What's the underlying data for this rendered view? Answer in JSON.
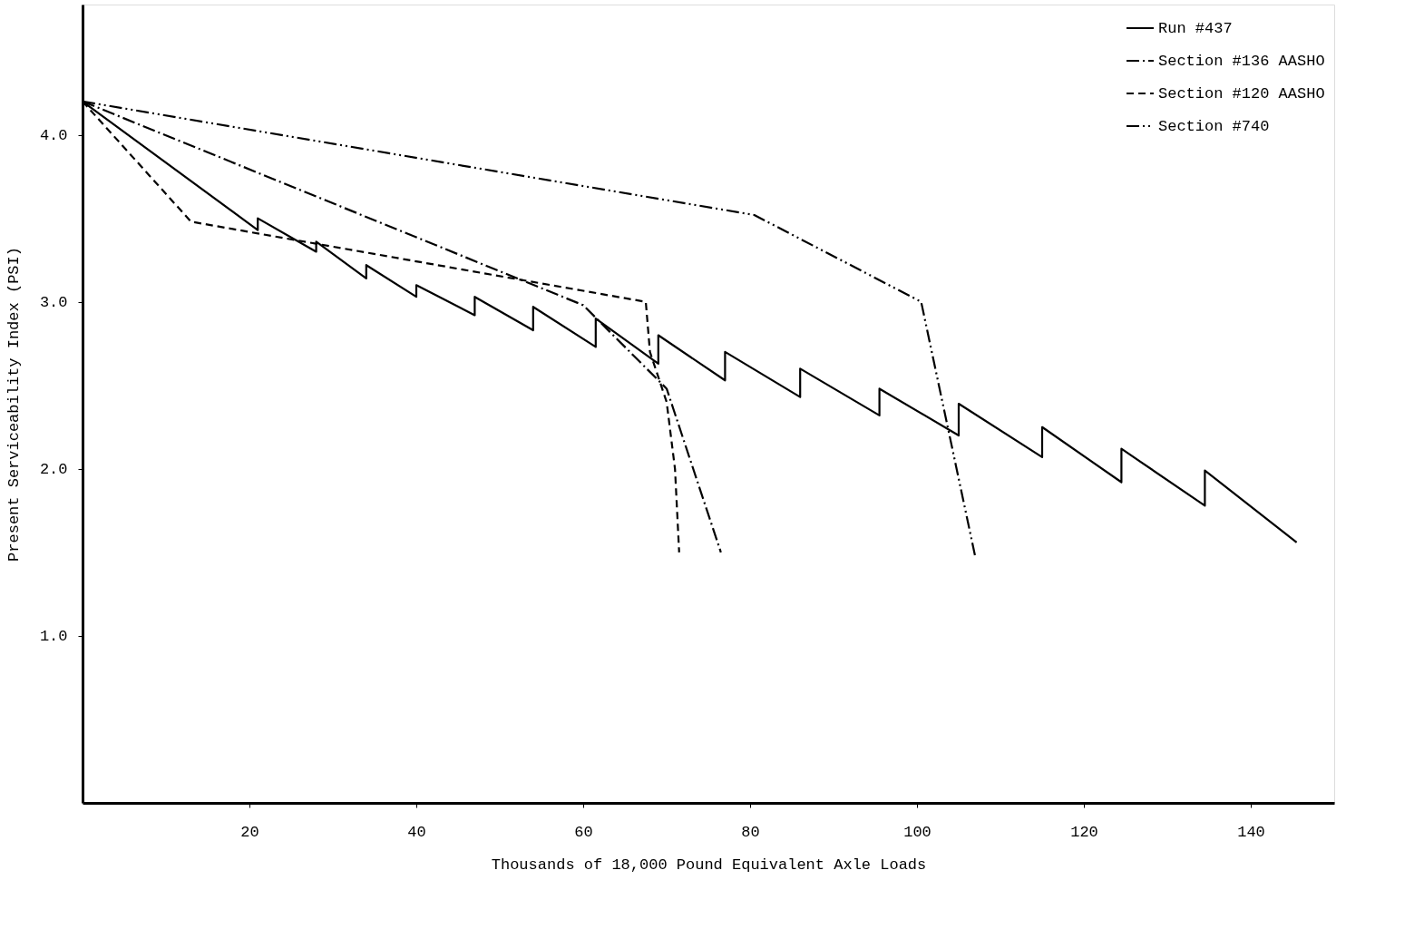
{
  "chart_data": {
    "type": "line",
    "xlabel": "Thousands of 18,000 Pound Equivalent Axle Loads",
    "ylabel": "Present Serviceability Index (PSI)",
    "xlim": [
      0,
      150
    ],
    "ylim": [
      0,
      4.78
    ],
    "xticks": [
      20,
      40,
      60,
      80,
      100,
      120,
      140
    ],
    "yticks": [
      {
        "value": 1,
        "label": "1.0"
      },
      {
        "value": 2,
        "label": "2.0"
      },
      {
        "value": 3,
        "label": "3.0"
      },
      {
        "value": 4,
        "label": "4.0"
      }
    ],
    "grid": false,
    "legend": "top right",
    "series": [
      {
        "name": "Run #437",
        "color": "#000000",
        "line_style": "solid",
        "x": [
          0,
          21,
          21,
          28,
          28,
          34,
          34,
          40,
          40,
          47,
          47,
          54,
          54,
          61.5,
          61.5,
          69,
          69,
          77,
          77,
          86,
          86,
          95.5,
          95.5,
          105,
          105,
          115,
          115,
          124.5,
          124.5,
          134.5,
          134.5,
          145.5
        ],
        "values": [
          4.2,
          3.43,
          3.5,
          3.3,
          3.36,
          3.14,
          3.22,
          3.03,
          3.1,
          2.92,
          3.03,
          2.83,
          2.97,
          2.73,
          2.9,
          2.63,
          2.8,
          2.53,
          2.7,
          2.43,
          2.6,
          2.32,
          2.48,
          2.2,
          2.39,
          2.07,
          2.25,
          1.92,
          2.12,
          1.78,
          1.99,
          1.56
        ]
      },
      {
        "name": "Section #136 AASHO",
        "color": "#000000",
        "line_style": "dashdot",
        "x": [
          0,
          60,
          70,
          76.5
        ],
        "values": [
          4.2,
          2.98,
          2.48,
          1.5
        ]
      },
      {
        "name": "Section #120 AASHO",
        "color": "#000000",
        "line_style": "dashed",
        "x": [
          0,
          13,
          67.5,
          68,
          70,
          71,
          71.5
        ],
        "values": [
          4.2,
          3.48,
          3.0,
          2.7,
          2.4,
          2.0,
          1.5
        ]
      },
      {
        "name": "Section #740",
        "color": "#000000",
        "line_style": "dashdotdot",
        "x": [
          0,
          80.5,
          100.5,
          107
        ],
        "values": [
          4.2,
          3.52,
          3.0,
          1.47
        ]
      }
    ]
  }
}
